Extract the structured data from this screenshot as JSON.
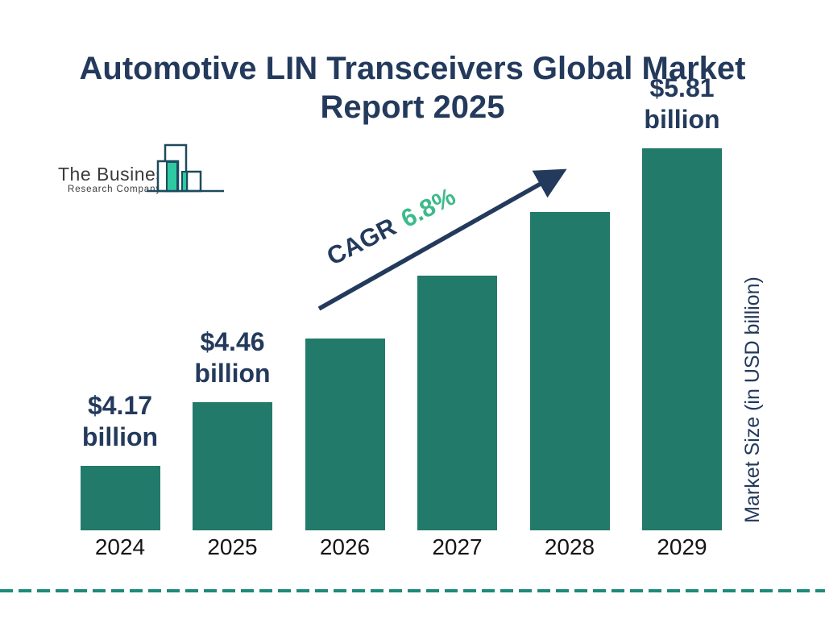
{
  "title": "Automotive LIN Transceivers Global Market Report 2025",
  "logo": {
    "name_line1": "The Business",
    "name_line2": "Research Company"
  },
  "annotation": {
    "cagr_label": "CAGR",
    "cagr_value": "6.8%"
  },
  "y_axis_label": "Market Size (in USD billion)",
  "chart_data": {
    "type": "bar",
    "title": "Automotive LIN Transceivers Global Market Report 2025",
    "categories": [
      "2024",
      "2025",
      "2026",
      "2027",
      "2028",
      "2029"
    ],
    "values": [
      4.17,
      4.46,
      4.76,
      5.09,
      5.43,
      5.81
    ],
    "values_estimated_from_cagr": [
      "2026",
      "2027",
      "2028"
    ],
    "unit": "USD billion",
    "xlabel": "",
    "ylabel": "Market Size (in USD billion)",
    "grid": false,
    "legend": "none",
    "annotations": [
      "CAGR 6.8%"
    ],
    "value_labels": [
      {
        "category": "2024",
        "line1": "$4.17",
        "line2": "billion"
      },
      {
        "category": "2025",
        "line1": "$4.46",
        "line2": "billion"
      },
      {
        "category": "2029",
        "line1": "$5.81",
        "line2": "billion"
      }
    ],
    "colors": {
      "bar": "#227a6b",
      "navy": "#233a5c",
      "mint": "#3dba8a",
      "dashed_line": "#1e8a7a",
      "logo_mint": "#2ec9a0",
      "logo_outline": "#1d4a5e"
    }
  }
}
